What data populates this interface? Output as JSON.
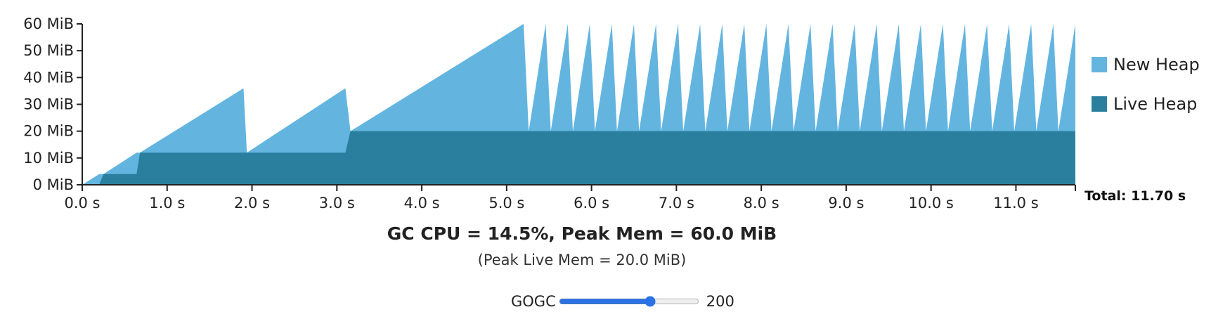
{
  "chart_data": {
    "type": "area",
    "xlabel": "",
    "ylabel": "",
    "x_unit": "s",
    "y_unit": "MiB",
    "xlim": [
      0,
      11.7
    ],
    "ylim": [
      0,
      60
    ],
    "x_ticks": [
      0,
      1,
      2,
      3,
      4,
      5,
      6,
      7,
      8,
      9,
      10,
      11
    ],
    "x_tick_labels": [
      "0.0 s",
      "1.0 s",
      "2.0 s",
      "3.0 s",
      "4.0 s",
      "5.0 s",
      "6.0 s",
      "7.0 s",
      "8.0 s",
      "9.0 s",
      "10.0 s",
      "11.0 s"
    ],
    "y_ticks": [
      0,
      10,
      20,
      30,
      40,
      50,
      60
    ],
    "y_tick_labels": [
      "0 MiB",
      "10 MiB",
      "20 MiB",
      "30 MiB",
      "40 MiB",
      "50 MiB",
      "60 MiB"
    ],
    "legend_position": "right",
    "series": [
      {
        "name": "New Heap",
        "color": "#63b5e0",
        "points": [
          [
            0,
            0
          ],
          [
            0.2,
            4
          ],
          [
            0.25,
            4
          ],
          [
            0.64,
            12
          ],
          [
            0.68,
            12
          ],
          [
            1.9,
            36
          ],
          [
            1.94,
            12
          ],
          [
            3.1,
            36
          ],
          [
            3.16,
            20
          ],
          [
            5.2,
            60
          ],
          [
            5.26,
            20
          ],
          [
            5.46,
            60
          ],
          [
            5.52,
            20
          ],
          [
            5.72,
            60
          ],
          [
            5.78,
            20
          ],
          [
            5.98,
            60
          ],
          [
            6.04,
            20
          ],
          [
            6.24,
            60
          ],
          [
            6.3,
            20
          ],
          [
            6.5,
            60
          ],
          [
            6.56,
            20
          ],
          [
            6.76,
            60
          ],
          [
            6.82,
            20
          ],
          [
            7.02,
            60
          ],
          [
            7.08,
            20
          ],
          [
            7.28,
            60
          ],
          [
            7.34,
            20
          ],
          [
            7.54,
            60
          ],
          [
            7.6,
            20
          ],
          [
            7.8,
            60
          ],
          [
            7.86,
            20
          ],
          [
            8.06,
            60
          ],
          [
            8.12,
            20
          ],
          [
            8.32,
            60
          ],
          [
            8.38,
            20
          ],
          [
            8.58,
            60
          ],
          [
            8.64,
            20
          ],
          [
            8.84,
            60
          ],
          [
            8.9,
            20
          ],
          [
            9.1,
            60
          ],
          [
            9.16,
            20
          ],
          [
            9.36,
            60
          ],
          [
            9.42,
            20
          ],
          [
            9.62,
            60
          ],
          [
            9.68,
            20
          ],
          [
            9.88,
            60
          ],
          [
            9.94,
            20
          ],
          [
            10.14,
            60
          ],
          [
            10.2,
            20
          ],
          [
            10.4,
            60
          ],
          [
            10.46,
            20
          ],
          [
            10.66,
            60
          ],
          [
            10.72,
            20
          ],
          [
            10.92,
            60
          ],
          [
            10.98,
            20
          ],
          [
            11.18,
            60
          ],
          [
            11.24,
            20
          ],
          [
            11.44,
            60
          ],
          [
            11.5,
            20
          ],
          [
            11.7,
            60
          ],
          [
            11.7,
            0
          ]
        ]
      },
      {
        "name": "Live Heap",
        "color": "#2a7f9e",
        "points": [
          [
            0,
            0
          ],
          [
            0.2,
            0
          ],
          [
            0.25,
            4
          ],
          [
            0.64,
            4
          ],
          [
            0.68,
            12
          ],
          [
            3.1,
            12
          ],
          [
            3.16,
            20
          ],
          [
            11.7,
            20
          ],
          [
            11.7,
            0
          ]
        ]
      }
    ],
    "total_label": "Total: 11.70 s"
  },
  "summary": "GC CPU = 14.5%, Peak Mem = 60.0 MiB",
  "subsummary": "(Peak Live Mem = 20.0 MiB)",
  "control": {
    "label": "GOGC",
    "min": 0,
    "max": 300,
    "value": 200,
    "value_label": "200"
  }
}
